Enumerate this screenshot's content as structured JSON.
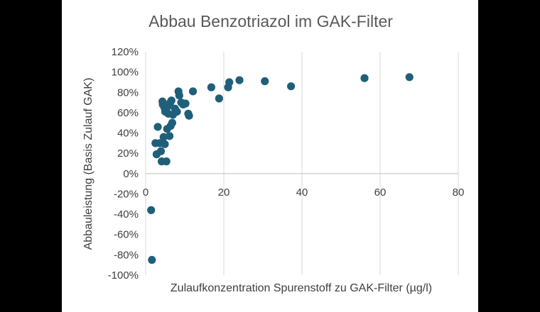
{
  "chart_data": {
    "type": "scatter",
    "title": "Abbau Benzotriazol im GAK-Filter",
    "xlabel": "Zulaufkonzentration Spurenstoff zu GAK-Filter  (µg/l)",
    "ylabel": "Abbauleistung (Basis Zulauf GAK)",
    "xlim": [
      0,
      80
    ],
    "ylim": [
      -100,
      120
    ],
    "x_ticks": [
      "0",
      "20",
      "40",
      "60",
      "80"
    ],
    "y_ticks": [
      "-100%",
      "-80%",
      "-60%",
      "-40%",
      "-20%",
      "0%",
      "20%",
      "40%",
      "60%",
      "80%",
      "100%",
      "120%"
    ],
    "grid": "vertical",
    "marker_color": "#1f5f7a",
    "series": [
      {
        "points": [
          [
            1.4,
            -36
          ],
          [
            1.6,
            -85
          ],
          [
            2.5,
            30
          ],
          [
            2.8,
            19
          ],
          [
            3.1,
            46
          ],
          [
            3.6,
            30
          ],
          [
            3.9,
            22
          ],
          [
            4.1,
            12
          ],
          [
            4.3,
            71
          ],
          [
            4.4,
            68
          ],
          [
            4.6,
            36
          ],
          [
            4.8,
            65
          ],
          [
            4.9,
            29
          ],
          [
            5.0,
            61
          ],
          [
            5.3,
            12
          ],
          [
            5.5,
            44
          ],
          [
            5.6,
            66
          ],
          [
            5.8,
            59
          ],
          [
            6.1,
            37
          ],
          [
            6.3,
            70
          ],
          [
            6.4,
            47
          ],
          [
            6.6,
            72
          ],
          [
            6.8,
            50
          ],
          [
            7.0,
            58
          ],
          [
            7.5,
            64
          ],
          [
            8.0,
            61
          ],
          [
            8.4,
            81
          ],
          [
            8.6,
            77
          ],
          [
            9.1,
            70
          ],
          [
            9.6,
            68
          ],
          [
            10.2,
            69
          ],
          [
            10.9,
            59
          ],
          [
            11.1,
            57
          ],
          [
            12.1,
            81
          ],
          [
            16.8,
            85
          ],
          [
            18.8,
            74
          ],
          [
            21.1,
            85
          ],
          [
            21.4,
            90
          ],
          [
            24.0,
            92
          ],
          [
            30.5,
            91
          ],
          [
            37.2,
            86
          ],
          [
            56.0,
            94
          ],
          [
            67.5,
            95
          ]
        ]
      }
    ]
  }
}
